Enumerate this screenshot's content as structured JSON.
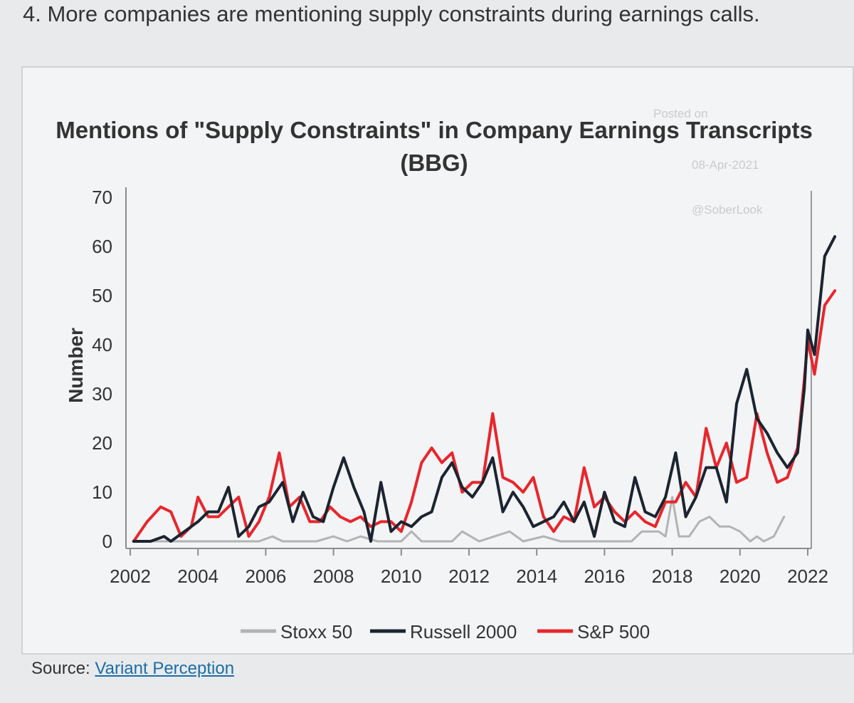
{
  "page": {
    "heading": "4. More companies are mentioning supply constraints during earnings calls.",
    "source_label": "Source:",
    "source_link": "Variant Perception"
  },
  "watermark": {
    "posted": "Posted on",
    "date": "08-Apr-2021",
    "handle": "@SoberLook"
  },
  "colors": {
    "stoxx": "#b3b3b3",
    "russell": "#1b2430",
    "sp500": "#e8262c"
  },
  "chart_data": {
    "type": "line",
    "title": "Mentions of \"Supply Constraints\" in Company Earnings Transcripts (BBG)",
    "title_lines": [
      "Mentions of \"Supply Constraints\" in Company Earnings Transcripts",
      "(BBG)"
    ],
    "xlabel": "",
    "ylabel": "Number",
    "xlim": [
      2002,
      2022
    ],
    "ylim": [
      0,
      70
    ],
    "xticks": [
      2002,
      2004,
      2006,
      2008,
      2010,
      2012,
      2014,
      2016,
      2018,
      2020,
      2022
    ],
    "yticks": [
      0,
      10,
      20,
      30,
      40,
      50,
      60,
      70
    ],
    "legend_position": "bottom-center",
    "series": [
      {
        "name": "Stoxx 50",
        "color_key": "stoxx",
        "points": [
          [
            2002.1,
            0
          ],
          [
            2003,
            0
          ],
          [
            2004,
            0
          ],
          [
            2005,
            0
          ],
          [
            2005.8,
            0
          ],
          [
            2006.2,
            1
          ],
          [
            2006.5,
            0
          ],
          [
            2007.5,
            0
          ],
          [
            2008,
            1
          ],
          [
            2008.4,
            0
          ],
          [
            2008.8,
            1
          ],
          [
            2009.3,
            0
          ],
          [
            2010,
            0
          ],
          [
            2010.3,
            2
          ],
          [
            2010.6,
            0
          ],
          [
            2011.5,
            0
          ],
          [
            2011.8,
            2
          ],
          [
            2012.3,
            0
          ],
          [
            2013.2,
            2
          ],
          [
            2013.6,
            0
          ],
          [
            2014.2,
            1
          ],
          [
            2014.7,
            0
          ],
          [
            2016,
            0
          ],
          [
            2016.8,
            0
          ],
          [
            2017.1,
            2
          ],
          [
            2017.6,
            2
          ],
          [
            2017.8,
            1
          ],
          [
            2018.0,
            9
          ],
          [
            2018.2,
            1
          ],
          [
            2018.5,
            1
          ],
          [
            2018.8,
            4
          ],
          [
            2019.1,
            5
          ],
          [
            2019.4,
            3
          ],
          [
            2019.7,
            3
          ],
          [
            2020.0,
            2
          ],
          [
            2020.3,
            0
          ],
          [
            2020.5,
            1
          ],
          [
            2020.7,
            0
          ],
          [
            2021.0,
            1
          ],
          [
            2021.3,
            5
          ]
        ]
      },
      {
        "name": "Russell 2000",
        "color_key": "russell",
        "points": [
          [
            2002.1,
            0
          ],
          [
            2002.6,
            0
          ],
          [
            2003,
            1
          ],
          [
            2003.2,
            0
          ],
          [
            2003.6,
            2
          ],
          [
            2004,
            4
          ],
          [
            2004.3,
            6
          ],
          [
            2004.6,
            6
          ],
          [
            2004.9,
            11
          ],
          [
            2005.2,
            1
          ],
          [
            2005.5,
            3
          ],
          [
            2005.8,
            7
          ],
          [
            2006.1,
            8
          ],
          [
            2006.5,
            12
          ],
          [
            2006.8,
            4
          ],
          [
            2007.1,
            10
          ],
          [
            2007.4,
            5
          ],
          [
            2007.7,
            4
          ],
          [
            2008.0,
            11
          ],
          [
            2008.3,
            17
          ],
          [
            2008.6,
            11
          ],
          [
            2008.9,
            6
          ],
          [
            2009.1,
            0
          ],
          [
            2009.4,
            12
          ],
          [
            2009.7,
            2
          ],
          [
            2010.0,
            4
          ],
          [
            2010.3,
            3
          ],
          [
            2010.6,
            5
          ],
          [
            2010.9,
            6
          ],
          [
            2011.2,
            13
          ],
          [
            2011.5,
            16
          ],
          [
            2011.8,
            11
          ],
          [
            2012.1,
            9
          ],
          [
            2012.4,
            12
          ],
          [
            2012.7,
            17
          ],
          [
            2013.0,
            6
          ],
          [
            2013.3,
            10
          ],
          [
            2013.6,
            7
          ],
          [
            2013.9,
            3
          ],
          [
            2014.2,
            4
          ],
          [
            2014.5,
            5
          ],
          [
            2014.8,
            8
          ],
          [
            2015.1,
            4
          ],
          [
            2015.4,
            8
          ],
          [
            2015.7,
            1
          ],
          [
            2016.0,
            10
          ],
          [
            2016.3,
            4
          ],
          [
            2016.6,
            3
          ],
          [
            2016.9,
            13
          ],
          [
            2017.2,
            6
          ],
          [
            2017.5,
            5
          ],
          [
            2017.8,
            9
          ],
          [
            2018.1,
            18
          ],
          [
            2018.4,
            5
          ],
          [
            2018.7,
            9
          ],
          [
            2019.0,
            15
          ],
          [
            2019.3,
            15
          ],
          [
            2019.6,
            8
          ],
          [
            2019.9,
            28
          ],
          [
            2020.2,
            35
          ],
          [
            2020.5,
            25
          ],
          [
            2020.8,
            22
          ],
          [
            2021.1,
            18
          ],
          [
            2021.4,
            15
          ],
          [
            2021.7,
            18
          ],
          [
            2021.9,
            31
          ],
          [
            2022.0,
            43
          ],
          [
            2022.2,
            38
          ],
          [
            2022.5,
            58
          ],
          [
            2022.8,
            62
          ]
        ]
      },
      {
        "name": "S&P 500",
        "color_key": "sp500",
        "points": [
          [
            2002.1,
            0
          ],
          [
            2002.5,
            4
          ],
          [
            2002.9,
            7
          ],
          [
            2003.2,
            6
          ],
          [
            2003.5,
            1
          ],
          [
            2003.8,
            3
          ],
          [
            2004.0,
            9
          ],
          [
            2004.3,
            5
          ],
          [
            2004.6,
            5
          ],
          [
            2004.9,
            7
          ],
          [
            2005.2,
            9
          ],
          [
            2005.5,
            1
          ],
          [
            2005.8,
            4
          ],
          [
            2006.1,
            9
          ],
          [
            2006.4,
            18
          ],
          [
            2006.7,
            7
          ],
          [
            2007.0,
            9
          ],
          [
            2007.3,
            4
          ],
          [
            2007.6,
            4
          ],
          [
            2007.9,
            7
          ],
          [
            2008.2,
            5
          ],
          [
            2008.5,
            4
          ],
          [
            2008.8,
            5
          ],
          [
            2009.1,
            3
          ],
          [
            2009.4,
            4
          ],
          [
            2009.7,
            4
          ],
          [
            2010.0,
            2
          ],
          [
            2010.3,
            8
          ],
          [
            2010.6,
            16
          ],
          [
            2010.9,
            19
          ],
          [
            2011.2,
            16
          ],
          [
            2011.5,
            18
          ],
          [
            2011.8,
            10
          ],
          [
            2012.1,
            12
          ],
          [
            2012.4,
            12
          ],
          [
            2012.7,
            26
          ],
          [
            2013.0,
            13
          ],
          [
            2013.3,
            12
          ],
          [
            2013.6,
            10
          ],
          [
            2013.9,
            13
          ],
          [
            2014.2,
            5
          ],
          [
            2014.5,
            2
          ],
          [
            2014.8,
            5
          ],
          [
            2015.1,
            4
          ],
          [
            2015.4,
            15
          ],
          [
            2015.7,
            7
          ],
          [
            2016.0,
            9
          ],
          [
            2016.3,
            6
          ],
          [
            2016.6,
            4
          ],
          [
            2016.9,
            6
          ],
          [
            2017.2,
            4
          ],
          [
            2017.5,
            3
          ],
          [
            2017.8,
            8
          ],
          [
            2018.1,
            8
          ],
          [
            2018.4,
            12
          ],
          [
            2018.7,
            9
          ],
          [
            2019.0,
            23
          ],
          [
            2019.3,
            15
          ],
          [
            2019.6,
            20
          ],
          [
            2019.9,
            12
          ],
          [
            2020.2,
            13
          ],
          [
            2020.5,
            26
          ],
          [
            2020.8,
            18
          ],
          [
            2021.1,
            12
          ],
          [
            2021.4,
            13
          ],
          [
            2021.7,
            19
          ],
          [
            2021.9,
            33
          ],
          [
            2022.0,
            41
          ],
          [
            2022.2,
            34
          ],
          [
            2022.5,
            48
          ],
          [
            2022.8,
            51
          ]
        ]
      }
    ]
  }
}
